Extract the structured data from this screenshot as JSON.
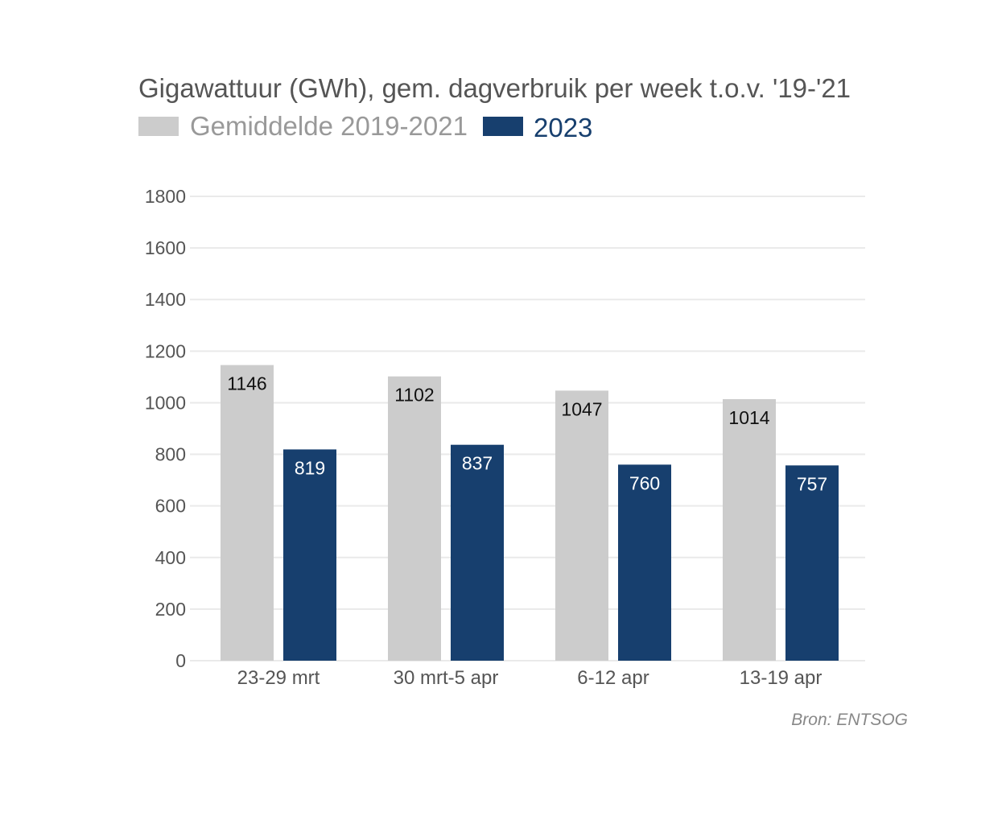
{
  "chart_data": {
    "type": "bar",
    "title": "Gigawattuur (GWh), gem. dagverbruik per week t.o.v. '19-'21",
    "categories": [
      "23-29 mrt",
      "30 mrt-5 apr",
      "6-12 apr",
      "13-19 apr"
    ],
    "series": [
      {
        "name": "Gemiddelde 2019-2021",
        "color": "#cccccc",
        "label_color": "#111111",
        "values": [
          1146,
          1102,
          1047,
          1014
        ]
      },
      {
        "name": "2023",
        "color": "#173f6e",
        "label_color": "#ffffff",
        "values": [
          819,
          837,
          760,
          757
        ]
      }
    ],
    "xlabel": "",
    "ylabel": "",
    "ylim": [
      0,
      1800
    ],
    "yticks": [
      0,
      200,
      400,
      600,
      800,
      1000,
      1200,
      1400,
      1600,
      1800
    ],
    "grid": true,
    "legend_position": "top-left",
    "source": "Bron: ENTSOG"
  }
}
